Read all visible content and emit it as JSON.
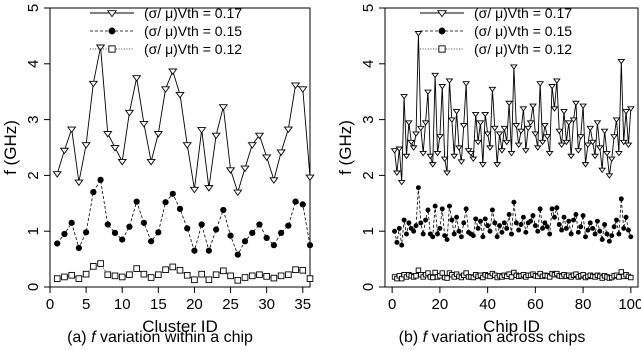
{
  "chart_data": [
    {
      "type": "scatter",
      "panel": "a",
      "caption_label": "(a)",
      "caption_italic": "f",
      "caption_text": "variation within a chip",
      "xlabel": "Cluster ID",
      "ylabel": "f (GHz)",
      "xlim": [
        0,
        36
      ],
      "ylim": [
        0,
        5
      ],
      "xticks": [
        "0",
        "5",
        "10",
        "15",
        "20",
        "25",
        "30",
        "35"
      ],
      "yticks": [
        "0",
        "1",
        "2",
        "3",
        "4",
        "5"
      ],
      "legend_position": "top-right",
      "series": [
        {
          "name": "(σ/ μ)Vth = 0.17",
          "marker": "triangle-down",
          "line": "solid",
          "values": [
            2.03,
            2.45,
            2.83,
            1.88,
            2.55,
            3.65,
            4.3,
            2.75,
            2.5,
            2.25,
            3.13,
            3.75,
            2.93,
            2.25,
            2.75,
            3.55,
            3.87,
            3.45,
            2.55,
            1.75,
            2.82,
            1.78,
            2.72,
            3.23,
            2.1,
            1.7,
            2.13,
            2.55,
            2.72,
            2.33,
            1.92,
            2.42,
            2.83,
            3.62,
            3.55,
            1.97
          ]
        },
        {
          "name": "(σ/ μ)Vth = 0.15",
          "marker": "filled-circle",
          "line": "dashed",
          "values": [
            0.78,
            0.95,
            1.15,
            0.7,
            0.98,
            1.7,
            1.92,
            1.12,
            0.97,
            0.85,
            1.08,
            1.53,
            1.15,
            0.82,
            0.98,
            1.52,
            1.67,
            1.4,
            1.05,
            0.65,
            1.12,
            0.65,
            1.03,
            1.38,
            0.92,
            0.58,
            0.82,
            0.97,
            1.12,
            0.88,
            0.75,
            0.97,
            1.1,
            1.53,
            1.48,
            0.75
          ]
        },
        {
          "name": "(σ/ μ)Vth = 0.12",
          "marker": "open-square",
          "line": "dotted",
          "values": [
            0.15,
            0.18,
            0.21,
            0.15,
            0.23,
            0.37,
            0.42,
            0.22,
            0.2,
            0.18,
            0.22,
            0.33,
            0.23,
            0.17,
            0.22,
            0.31,
            0.36,
            0.3,
            0.21,
            0.13,
            0.23,
            0.13,
            0.22,
            0.29,
            0.2,
            0.12,
            0.17,
            0.2,
            0.22,
            0.19,
            0.16,
            0.2,
            0.22,
            0.31,
            0.3,
            0.15
          ]
        }
      ]
    },
    {
      "type": "scatter",
      "panel": "b",
      "caption_label": "(b)",
      "caption_italic": "f",
      "caption_text": "variation across chips",
      "xlabel": "Chip ID",
      "ylabel": "f (GHz)",
      "xlim": [
        0,
        100
      ],
      "ylim": [
        0,
        5
      ],
      "xticks": [
        "0",
        "20",
        "40",
        "60",
        "80",
        "100"
      ],
      "yticks": [
        "0",
        "1",
        "2",
        "3",
        "4",
        "5"
      ],
      "legend_position": "top-right",
      "series": [
        {
          "name": "(σ/ μ)Vth = 0.17",
          "marker": "triangle-down",
          "line": "solid",
          "values": [
            2.45,
            2.05,
            2.48,
            1.88,
            3.42,
            2.35,
            2.95,
            2.6,
            2.5,
            2.75,
            4.55,
            2.85,
            2.4,
            2.95,
            3.5,
            2.35,
            2.2,
            3.8,
            2.4,
            2.7,
            3.6,
            2.3,
            2.05,
            3.7,
            3.0,
            2.35,
            3.15,
            2.5,
            2.25,
            2.9,
            3.65,
            2.45,
            2.4,
            2.3,
            3.1,
            2.6,
            2.95,
            2.2,
            3.1,
            2.75,
            2.5,
            3.55,
            2.85,
            2.2,
            2.75,
            2.45,
            2.85,
            2.6,
            3.3,
            2.4,
            3.95,
            2.9,
            2.55,
            2.8,
            3.2,
            2.45,
            2.85,
            2.95,
            3.25,
            2.75,
            2.5,
            3.65,
            2.6,
            2.9,
            2.7,
            2.4,
            3.6,
            3.2,
            3.7,
            2.8,
            2.55,
            3.15,
            2.6,
            2.95,
            2.35,
            3.0,
            3.3,
            2.45,
            2.7,
            3.25,
            2.2,
            2.55,
            2.85,
            2.6,
            2.35,
            2.95,
            2.5,
            2.1,
            2.8,
            2.4,
            2.0,
            2.3,
            2.7,
            3.0,
            2.4,
            4.05,
            2.6,
            3.15,
            2.55,
            3.2
          ]
        },
        {
          "name": "(σ/ μ)Vth = 0.15",
          "marker": "filled-circle",
          "line": "dashed",
          "values": [
            1.0,
            0.8,
            1.05,
            0.75,
            1.2,
            0.95,
            1.15,
            1.05,
            1.0,
            1.1,
            1.78,
            1.15,
            0.95,
            1.2,
            1.38,
            0.95,
            0.9,
            1.45,
            0.95,
            1.05,
            1.4,
            0.92,
            0.85,
            1.45,
            1.2,
            0.95,
            1.25,
            1.0,
            0.9,
            1.15,
            1.4,
            0.98,
            0.95,
            0.92,
            1.22,
            1.05,
            1.18,
            0.9,
            1.22,
            1.1,
            1.0,
            1.38,
            1.15,
            0.9,
            1.1,
            0.98,
            1.15,
            1.05,
            1.3,
            0.95,
            1.52,
            1.15,
            1.02,
            1.12,
            1.25,
            0.98,
            1.15,
            1.18,
            1.28,
            1.1,
            1.0,
            1.4,
            1.05,
            1.15,
            1.08,
            0.95,
            1.4,
            1.25,
            1.42,
            1.12,
            1.02,
            1.25,
            1.05,
            1.18,
            0.95,
            1.2,
            1.3,
            0.98,
            1.08,
            1.28,
            0.9,
            1.02,
            1.15,
            1.05,
            0.95,
            1.18,
            1.0,
            0.85,
            1.12,
            0.95,
            0.82,
            0.92,
            1.08,
            1.2,
            0.95,
            1.58,
            1.05,
            1.25,
            1.02,
            0.9
          ]
        },
        {
          "name": "(σ/ μ)Vth = 0.12",
          "marker": "open-square",
          "line": "dotted",
          "values": [
            0.18,
            0.15,
            0.2,
            0.15,
            0.22,
            0.18,
            0.22,
            0.2,
            0.18,
            0.2,
            0.3,
            0.22,
            0.18,
            0.22,
            0.25,
            0.18,
            0.17,
            0.26,
            0.18,
            0.2,
            0.25,
            0.17,
            0.16,
            0.25,
            0.22,
            0.18,
            0.23,
            0.19,
            0.17,
            0.21,
            0.25,
            0.18,
            0.18,
            0.17,
            0.22,
            0.19,
            0.21,
            0.17,
            0.22,
            0.2,
            0.19,
            0.24,
            0.21,
            0.17,
            0.2,
            0.18,
            0.21,
            0.19,
            0.23,
            0.18,
            0.26,
            0.21,
            0.19,
            0.2,
            0.22,
            0.18,
            0.21,
            0.21,
            0.23,
            0.2,
            0.19,
            0.24,
            0.19,
            0.21,
            0.2,
            0.18,
            0.24,
            0.22,
            0.24,
            0.2,
            0.19,
            0.22,
            0.19,
            0.21,
            0.18,
            0.21,
            0.23,
            0.18,
            0.2,
            0.22,
            0.17,
            0.19,
            0.21,
            0.19,
            0.18,
            0.21,
            0.19,
            0.16,
            0.2,
            0.18,
            0.16,
            0.17,
            0.2,
            0.21,
            0.18,
            0.27,
            0.19,
            0.22,
            0.19,
            0.17
          ]
        }
      ]
    }
  ]
}
